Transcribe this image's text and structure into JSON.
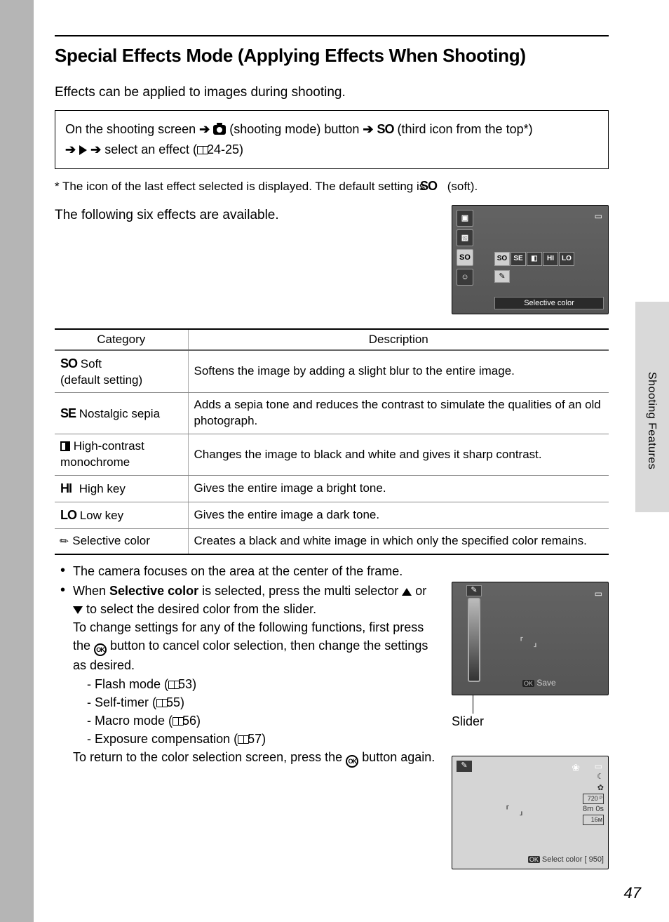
{
  "page_number": "47",
  "side_tab_label": "Shooting Features",
  "heading": "Special Effects Mode (Applying Effects When Shooting)",
  "intro": "Effects can be applied to images during shooting.",
  "navbox": {
    "l1_a": "On the shooting screen ",
    "l1_b": " (shooting mode) button ",
    "l1_c": " (third icon from the top*) ",
    "l2_a": " select an effect (",
    "l2_b": "24-25)",
    "so_code": "SO"
  },
  "footnote_a": "*  The icon of the last effect selected is displayed. The default setting is ",
  "footnote_b": " (soft).",
  "footnote_code": "SO",
  "available_text": "The following six effects are available.",
  "lcd1": {
    "side_icons": [
      "▣",
      "▧",
      "SO",
      "☺"
    ],
    "selected_index": 2,
    "effect_bar": [
      "SO",
      "SE",
      "◧",
      "HI",
      "LO"
    ],
    "effect_selected": 0,
    "brush": "✎",
    "bottom_label": "Selective color",
    "battery": "▭"
  },
  "table": {
    "headers": [
      "Category",
      "Description"
    ],
    "rows": [
      {
        "code": "SO",
        "name": "Soft",
        "extra": "(default setting)",
        "desc": "Softens the image by adding a slight blur to the entire image."
      },
      {
        "code": "SE",
        "name": "Nostalgic sepia",
        "extra": "",
        "desc": "Adds a sepia tone and reduces the contrast to simulate the qualities of an old photograph."
      },
      {
        "code": "MONO",
        "name": "High-contrast monochrome",
        "extra": "",
        "desc": "Changes the image to black and white and gives it sharp contrast."
      },
      {
        "code": "HI",
        "name": "High key",
        "extra": "",
        "desc": "Gives the entire image a bright tone."
      },
      {
        "code": "LO",
        "name": "Low key",
        "extra": "",
        "desc": "Gives the entire image a dark tone."
      },
      {
        "code": "BRUSH",
        "name": "Selective color",
        "extra": "",
        "desc": "Creates a black and white image in which only the specified color remains."
      }
    ]
  },
  "notes": {
    "n1": "The camera focuses on the area at the center of the frame.",
    "n2_a": "When ",
    "n2_bold": "Selective color",
    "n2_b": " is selected, press the multi selector ",
    "n2_c": " or ",
    "n2_d": " to select the desired color from the slider.",
    "n2_e": "To change settings for any of the following functions, first press the ",
    "n2_f": " button to cancel color selection, then change the settings as desired.",
    "subs": [
      {
        "t": "Flash mode (",
        "p": "53)"
      },
      {
        "t": "Self-timer (",
        "p": "55)"
      },
      {
        "t": "Macro mode (",
        "p": "56)"
      },
      {
        "t": "Exposure compensation (",
        "p": "57)"
      }
    ],
    "n2_g": "To return to the color selection screen, press the ",
    "n2_h": " button again.",
    "ok_label": "OK"
  },
  "lcd2": {
    "brush": "✎",
    "battery": "▭",
    "focus": "⸢  ⸥",
    "save_a": "OK",
    "save_b": " Save",
    "caption": "Slider"
  },
  "lcd3": {
    "brush": "✎",
    "gear": "❀",
    "battery": "▭",
    "focus": "⸢  ⸥",
    "info": [
      "☾",
      "✿",
      "720 ᴾ",
      "8m 0s",
      "16ᴍ"
    ],
    "bottom_a": "OK",
    "bottom_b": " Select color  ",
    "bottom_c": "[   950]"
  }
}
